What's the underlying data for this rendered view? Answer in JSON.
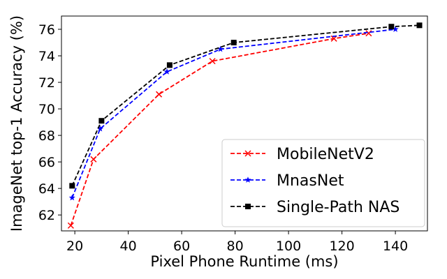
{
  "chart_data": {
    "type": "line",
    "title": "",
    "xlabel": "Pixel Phone Runtime (ms)",
    "ylabel": "ImageNet top-1 Accuracy (%)",
    "xlim": [
      15,
      152
    ],
    "ylim": [
      60.8,
      77.0
    ],
    "xticks": [
      20,
      40,
      60,
      80,
      100,
      120,
      140
    ],
    "yticks": [
      62,
      64,
      66,
      68,
      70,
      72,
      74,
      76
    ],
    "grid": false,
    "legend_position": "bottom-right",
    "series": [
      {
        "name": "MobileNetV2",
        "color": "#ff0000",
        "marker": "x",
        "line_style": "dashed",
        "x": [
          18.5,
          27,
          51.5,
          71.5,
          117,
          130
        ],
        "y": [
          61.2,
          66.2,
          71.1,
          73.6,
          75.3,
          75.7
        ]
      },
      {
        "name": "MnasNet",
        "color": "#0000ff",
        "marker": "star",
        "line_style": "dashed",
        "x": [
          19,
          29.5,
          54.5,
          74.5,
          140
        ],
        "y": [
          63.3,
          68.5,
          72.8,
          74.5,
          76.0
        ]
      },
      {
        "name": "Single-Path NAS",
        "color": "#000000",
        "marker": "square",
        "line_style": "dashed",
        "x": [
          19,
          30,
          55.5,
          79.5,
          138.5,
          149
        ],
        "y": [
          64.2,
          69.1,
          73.3,
          75.0,
          76.2,
          76.3
        ]
      }
    ]
  }
}
